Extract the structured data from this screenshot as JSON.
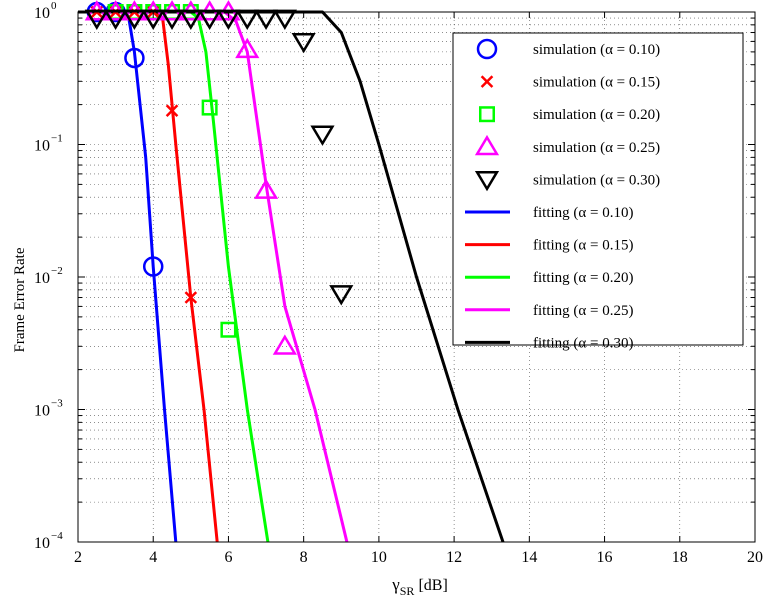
{
  "chart_data": {
    "type": "line",
    "xlabel": "γ",
    "xlabel_sub": "SR",
    "xlabel_unit": "[dB]",
    "ylabel": "Frame Error Rate",
    "xlim": [
      2,
      20
    ],
    "ylim": [
      0.0001,
      1
    ],
    "yscale": "log",
    "grid": true,
    "legend_position": "top-right",
    "x_ticks": [
      2,
      4,
      6,
      8,
      10,
      12,
      14,
      16,
      18,
      20
    ],
    "y_ticks": [
      {
        "value": 0.0001,
        "base": "10",
        "exp": "−4"
      },
      {
        "value": 0.001,
        "base": "10",
        "exp": "−3"
      },
      {
        "value": 0.01,
        "base": "10",
        "exp": "−2"
      },
      {
        "value": 0.1,
        "base": "10",
        "exp": "−1"
      },
      {
        "value": 1,
        "base": "10",
        "exp": "0"
      }
    ],
    "series": [
      {
        "name": "simulation (α = 0.10)",
        "kind": "marker",
        "marker": "circle",
        "color": "#0000ff",
        "points": [
          [
            2.5,
            1.0
          ],
          [
            3.0,
            1.0
          ],
          [
            3.5,
            0.45
          ],
          [
            4.0,
            0.012
          ]
        ]
      },
      {
        "name": "simulation (α = 0.15)",
        "kind": "marker",
        "marker": "x",
        "color": "#ff0000",
        "points": [
          [
            2.5,
            1.0
          ],
          [
            3.0,
            1.0
          ],
          [
            3.5,
            1.0
          ],
          [
            4.0,
            1.0
          ],
          [
            4.5,
            0.18
          ],
          [
            5.0,
            0.007
          ]
        ]
      },
      {
        "name": "simulation (α = 0.20)",
        "kind": "marker",
        "marker": "square",
        "color": "#00ff00",
        "points": [
          [
            3.0,
            1.0
          ],
          [
            3.5,
            1.0
          ],
          [
            4.0,
            1.0
          ],
          [
            4.5,
            1.0
          ],
          [
            5.0,
            1.0
          ],
          [
            5.5,
            0.19
          ],
          [
            6.0,
            0.004
          ]
        ]
      },
      {
        "name": "simulation (α = 0.25)",
        "kind": "marker",
        "marker": "triangle-up",
        "color": "#ff00ff",
        "points": [
          [
            2.5,
            1.0
          ],
          [
            3.0,
            1.0
          ],
          [
            3.5,
            1.0
          ],
          [
            4.0,
            1.0
          ],
          [
            4.5,
            1.0
          ],
          [
            5.0,
            1.0
          ],
          [
            5.5,
            1.0
          ],
          [
            6.0,
            1.0
          ],
          [
            6.5,
            0.52
          ],
          [
            7.0,
            0.045
          ],
          [
            7.5,
            0.003
          ]
        ]
      },
      {
        "name": "simulation (α = 0.30)",
        "kind": "marker",
        "marker": "triangle-down",
        "color": "#000000",
        "points": [
          [
            2.5,
            0.9
          ],
          [
            3.0,
            0.9
          ],
          [
            3.5,
            0.9
          ],
          [
            4.0,
            0.9
          ],
          [
            4.5,
            0.9
          ],
          [
            5.0,
            0.9
          ],
          [
            5.5,
            0.9
          ],
          [
            6.0,
            0.9
          ],
          [
            6.5,
            0.9
          ],
          [
            7.0,
            0.9
          ],
          [
            7.5,
            0.9
          ],
          [
            8.0,
            0.6
          ],
          [
            8.5,
            0.12
          ],
          [
            9.0,
            0.0075
          ]
        ]
      },
      {
        "name": "fitting (α = 0.10)",
        "kind": "line",
        "color": "#0000ff",
        "points": [
          [
            2.0,
            1.0
          ],
          [
            3.2,
            1.0
          ],
          [
            3.35,
            0.9
          ],
          [
            3.5,
            0.5
          ],
          [
            3.8,
            0.08
          ],
          [
            4.0,
            0.012
          ],
          [
            4.3,
            0.001
          ],
          [
            4.6,
            0.0001
          ]
        ]
      },
      {
        "name": "fitting (α = 0.15)",
        "kind": "line",
        "color": "#ff0000",
        "points": [
          [
            2.0,
            1.0
          ],
          [
            4.1,
            1.0
          ],
          [
            4.25,
            0.9
          ],
          [
            4.4,
            0.4
          ],
          [
            4.6,
            0.1
          ],
          [
            5.0,
            0.007
          ],
          [
            5.35,
            0.001
          ],
          [
            5.7,
            0.0001
          ]
        ]
      },
      {
        "name": "fitting (α = 0.20)",
        "kind": "line",
        "color": "#00ff00",
        "points": [
          [
            2.0,
            1.0
          ],
          [
            5.0,
            1.0
          ],
          [
            5.2,
            0.9
          ],
          [
            5.4,
            0.5
          ],
          [
            5.6,
            0.15
          ],
          [
            6.0,
            0.012
          ],
          [
            6.5,
            0.001
          ],
          [
            7.05,
            0.0001
          ]
        ]
      },
      {
        "name": "fitting (α = 0.25)",
        "kind": "line",
        "color": "#ff00ff",
        "points": [
          [
            2.0,
            1.0
          ],
          [
            5.9,
            1.0
          ],
          [
            6.2,
            0.85
          ],
          [
            6.5,
            0.5
          ],
          [
            7.0,
            0.05
          ],
          [
            7.5,
            0.006
          ],
          [
            8.3,
            0.001
          ],
          [
            9.15,
            0.0001
          ]
        ]
      },
      {
        "name": "fitting (α = 0.30)",
        "kind": "line",
        "color": "#000000",
        "points": [
          [
            2.0,
            1.0
          ],
          [
            8.5,
            1.0
          ],
          [
            9.0,
            0.7
          ],
          [
            9.5,
            0.3
          ],
          [
            10.0,
            0.1
          ],
          [
            11.0,
            0.01
          ],
          [
            12.1,
            0.001
          ],
          [
            13.3,
            0.0001
          ]
        ]
      }
    ]
  }
}
